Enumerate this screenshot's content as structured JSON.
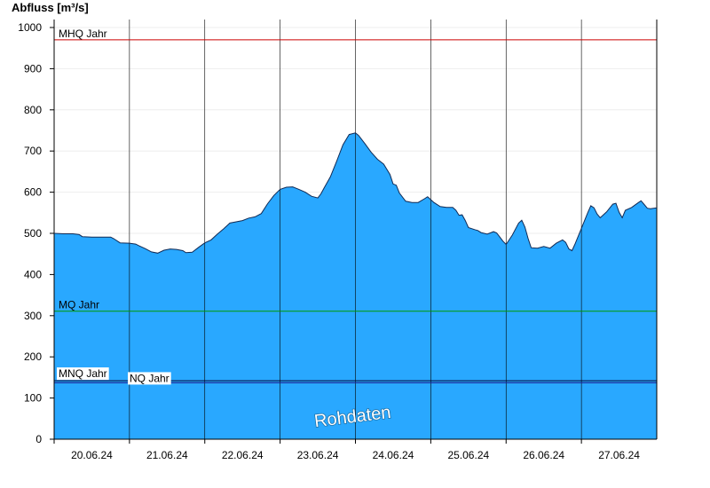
{
  "chart_data": {
    "type": "area",
    "ylabel": "Abfluss [m³/s]",
    "ylim": [
      0,
      1000
    ],
    "y_ticks": [
      0,
      100,
      200,
      300,
      400,
      500,
      600,
      700,
      800,
      900,
      1000
    ],
    "x_start": "20.06.24 00:00",
    "x_end": "28.06.24 00:00",
    "x_ticks": [
      "20.06.24",
      "21.06.24",
      "22.06.24",
      "23.06.24",
      "24.06.24",
      "25.06.24",
      "26.06.24",
      "27.06.24"
    ],
    "grid": "horizontal",
    "colors": {
      "area": "#29a8ff",
      "area_edge": "#102a55",
      "mhq": "#cc0000",
      "mq": "#009900",
      "mnq": "#000033",
      "nq": "#1a1a8c",
      "day_lines": "#000000"
    },
    "watermark": "Rohdaten",
    "reference_lines": [
      {
        "label": "MHQ Jahr",
        "value": 970,
        "color": "#cc0000"
      },
      {
        "label": "MQ Jahr",
        "value": 311,
        "color": "#009900"
      },
      {
        "label": "MNQ Jahr",
        "value": 142,
        "color": "#000033"
      },
      {
        "label": "NQ Jahr",
        "value": 137,
        "color": "#1a1a8c"
      }
    ],
    "series": [
      {
        "points": [
          [
            "20.06.24 00:00",
            500
          ],
          [
            "20.06.24 03:00",
            499
          ],
          [
            "20.06.24 06:00",
            499
          ],
          [
            "20.06.24 08:00",
            497
          ],
          [
            "20.06.24 09:00",
            492
          ],
          [
            "20.06.24 12:00",
            491
          ],
          [
            "20.06.24 15:00",
            491
          ],
          [
            "20.06.24 18:00",
            491
          ],
          [
            "20.06.24 19:00",
            487
          ],
          [
            "20.06.24 21:00",
            477
          ],
          [
            "21.06.24 00:00",
            476
          ],
          [
            "21.06.24 02:00",
            474
          ],
          [
            "21.06.24 03:00",
            470
          ],
          [
            "21.06.24 05:00",
            463
          ],
          [
            "21.06.24 07:00",
            455
          ],
          [
            "21.06.24 09:00",
            452
          ],
          [
            "21.06.24 11:00",
            459
          ],
          [
            "21.06.24 13:00",
            462
          ],
          [
            "21.06.24 15:00",
            461
          ],
          [
            "21.06.24 17:00",
            458
          ],
          [
            "21.06.24 18:00",
            453
          ],
          [
            "21.06.24 20:00",
            454
          ],
          [
            "21.06.24 22:00",
            466
          ],
          [
            "22.06.24 00:00",
            477
          ],
          [
            "22.06.24 02:00",
            484
          ],
          [
            "22.06.24 04:00",
            498
          ],
          [
            "22.06.24 06:00",
            511
          ],
          [
            "22.06.24 08:00",
            525
          ],
          [
            "22.06.24 10:00",
            528
          ],
          [
            "22.06.24 12:00",
            531
          ],
          [
            "22.06.24 14:00",
            537
          ],
          [
            "22.06.24 16:00",
            540
          ],
          [
            "22.06.24 18:00",
            548
          ],
          [
            "22.06.24 20:00",
            572
          ],
          [
            "22.06.24 22:00",
            592
          ],
          [
            "23.06.24 00:00",
            607
          ],
          [
            "23.06.24 02:00",
            612
          ],
          [
            "23.06.24 04:00",
            613
          ],
          [
            "23.06.24 06:00",
            607
          ],
          [
            "23.06.24 08:00",
            600
          ],
          [
            "23.06.24 10:00",
            590
          ],
          [
            "23.06.24 12:00",
            586
          ],
          [
            "23.06.24 13:00",
            596
          ],
          [
            "23.06.24 14:00",
            610
          ],
          [
            "23.06.24 16:00",
            637
          ],
          [
            "23.06.24 18:00",
            675
          ],
          [
            "23.06.24 20:00",
            715
          ],
          [
            "23.06.24 22:00",
            740
          ],
          [
            "24.06.24 00:00",
            744
          ],
          [
            "24.06.24 01:00",
            738
          ],
          [
            "24.06.24 03:00",
            718
          ],
          [
            "24.06.24 05:00",
            697
          ],
          [
            "24.06.24 07:00",
            680
          ],
          [
            "24.06.24 09:00",
            668
          ],
          [
            "24.06.24 11:00",
            643
          ],
          [
            "24.06.24 12:00",
            620
          ],
          [
            "24.06.24 13:00",
            617
          ],
          [
            "24.06.24 14:00",
            598
          ],
          [
            "24.06.24 16:00",
            578
          ],
          [
            "24.06.24 18:00",
            575
          ],
          [
            "24.06.24 20:00",
            575
          ],
          [
            "24.06.24 22:00",
            584
          ],
          [
            "24.06.24 23:00",
            589
          ],
          [
            "25.06.24 01:00",
            575
          ],
          [
            "25.06.24 03:00",
            565
          ],
          [
            "25.06.24 05:00",
            563
          ],
          [
            "25.06.24 07:00",
            563
          ],
          [
            "25.06.24 08:00",
            556
          ],
          [
            "25.06.24 09:00",
            544
          ],
          [
            "25.06.24 10:00",
            545
          ],
          [
            "25.06.24 11:00",
            531
          ],
          [
            "25.06.24 12:00",
            514
          ],
          [
            "25.06.24 14:00",
            509
          ],
          [
            "25.06.24 15:00",
            507
          ],
          [
            "25.06.24 16:00",
            502
          ],
          [
            "25.06.24 18:00",
            498
          ],
          [
            "25.06.24 20:00",
            504
          ],
          [
            "25.06.24 21:00",
            501
          ],
          [
            "25.06.24 22:00",
            491
          ],
          [
            "25.06.24 23:00",
            481
          ],
          [
            "26.06.24 00:00",
            473
          ],
          [
            "26.06.24 02:00",
            496
          ],
          [
            "26.06.24 04:00",
            525
          ],
          [
            "26.06.24 05:00",
            532
          ],
          [
            "26.06.24 06:00",
            515
          ],
          [
            "26.06.24 07:00",
            488
          ],
          [
            "26.06.24 08:00",
            465
          ],
          [
            "26.06.24 10:00",
            464
          ],
          [
            "26.06.24 12:00",
            468
          ],
          [
            "26.06.24 14:00",
            464
          ],
          [
            "26.06.24 16:00",
            476
          ],
          [
            "26.06.24 18:00",
            484
          ],
          [
            "26.06.24 19:00",
            478
          ],
          [
            "26.06.24 20:00",
            462
          ],
          [
            "26.06.24 21:00",
            458
          ],
          [
            "26.06.24 22:00",
            475
          ],
          [
            "27.06.24 00:00",
            512
          ],
          [
            "27.06.24 02:00",
            550
          ],
          [
            "27.06.24 03:00",
            567
          ],
          [
            "27.06.24 04:00",
            562
          ],
          [
            "27.06.24 05:00",
            547
          ],
          [
            "27.06.24 06:00",
            538
          ],
          [
            "27.06.24 08:00",
            552
          ],
          [
            "27.06.24 10:00",
            571
          ],
          [
            "27.06.24 11:00",
            573
          ],
          [
            "27.06.24 12:00",
            551
          ],
          [
            "27.06.24 13:00",
            538
          ],
          [
            "27.06.24 14:00",
            556
          ],
          [
            "27.06.24 16:00",
            563
          ],
          [
            "27.06.24 18:00",
            574
          ],
          [
            "27.06.24 19:00",
            579
          ],
          [
            "27.06.24 20:00",
            570
          ],
          [
            "27.06.24 21:00",
            561
          ],
          [
            "27.06.24 22:00",
            560
          ],
          [
            "28.06.24 00:00",
            562
          ]
        ]
      }
    ]
  }
}
